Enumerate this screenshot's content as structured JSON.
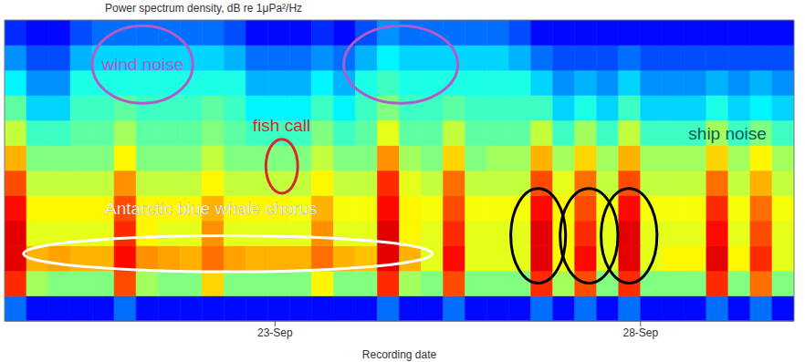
{
  "chart_data": {
    "type": "spectrogram",
    "title": "Power spectrum density, dB re 1μPa²/Hz",
    "x_label": "Recording date",
    "xlim": [
      19.3,
      30.1
    ],
    "xticks": [
      {
        "value": 23,
        "label": "23-Sep"
      },
      {
        "value": 28,
        "label": "28-Sep"
      }
    ],
    "ylim": [
      0,
      12
    ],
    "tick_labels": "x",
    "zlim": [
      50,
      110
    ],
    "x_edges": [
      19.3,
      19.6,
      19.9,
      20.2,
      20.5,
      20.8,
      21.1,
      21.4,
      21.7,
      22.0,
      22.3,
      22.6,
      22.9,
      23.2,
      23.5,
      23.8,
      24.1,
      24.4,
      24.7,
      25.0,
      25.3,
      25.6,
      25.9,
      26.2,
      26.5,
      26.8,
      27.1,
      27.4,
      27.7,
      28.0,
      28.3,
      28.6,
      28.9,
      29.2,
      29.5,
      29.8,
      30.1
    ],
    "y_edges": [
      0,
      1,
      2,
      3,
      4,
      5,
      6,
      7,
      8,
      9,
      10,
      11,
      12
    ],
    "cells": [
      [
        64,
        58,
        58,
        58,
        58,
        64,
        58,
        58,
        58,
        58,
        58,
        58,
        58,
        58,
        58,
        58,
        58,
        64,
        58,
        58,
        64,
        58,
        58,
        58,
        64,
        58,
        64,
        58,
        64,
        58,
        58,
        58,
        64,
        58,
        64,
        58
      ],
      [
        100,
        82,
        80,
        80,
        80,
        98,
        82,
        80,
        80,
        90,
        80,
        80,
        80,
        80,
        88,
        80,
        80,
        100,
        82,
        80,
        98,
        80,
        80,
        80,
        100,
        82,
        98,
        80,
        100,
        80,
        80,
        80,
        100,
        80,
        96,
        80
      ],
      [
        104,
        92,
        93,
        92,
        92,
        102,
        94,
        93,
        92,
        96,
        93,
        92,
        92,
        92,
        96,
        92,
        91,
        104,
        92,
        86,
        102,
        86,
        86,
        86,
        104,
        88,
        102,
        86,
        104,
        86,
        88,
        88,
        104,
        88,
        100,
        86
      ],
      [
        104,
        86,
        86,
        86,
        86,
        100,
        88,
        86,
        86,
        94,
        86,
        86,
        86,
        86,
        94,
        86,
        86,
        104,
        88,
        86,
        100,
        86,
        86,
        86,
        104,
        88,
        100,
        86,
        104,
        86,
        86,
        86,
        102,
        86,
        98,
        86
      ],
      [
        102,
        88,
        88,
        88,
        88,
        98,
        88,
        88,
        88,
        92,
        88,
        88,
        88,
        87,
        92,
        87,
        87,
        102,
        88,
        87,
        98,
        87,
        87,
        87,
        102,
        88,
        98,
        87,
        102,
        87,
        87,
        87,
        100,
        87,
        96,
        87
      ],
      [
        98,
        84,
        84,
        84,
        84,
        94,
        84,
        84,
        84,
        88,
        84,
        84,
        84,
        84,
        88,
        84,
        84,
        100,
        86,
        84,
        96,
        84,
        84,
        84,
        98,
        86,
        96,
        84,
        98,
        84,
        84,
        84,
        96,
        84,
        92,
        84
      ],
      [
        92,
        80,
        80,
        80,
        80,
        88,
        80,
        80,
        80,
        84,
        80,
        80,
        80,
        80,
        84,
        80,
        80,
        94,
        82,
        80,
        90,
        80,
        82,
        82,
        92,
        82,
        90,
        82,
        92,
        82,
        82,
        82,
        90,
        82,
        88,
        82
      ],
      [
        84,
        76,
        76,
        78,
        78,
        82,
        78,
        78,
        78,
        80,
        78,
        76,
        76,
        76,
        80,
        76,
        78,
        86,
        78,
        78,
        84,
        78,
        78,
        78,
        84,
        76,
        82,
        76,
        84,
        76,
        76,
        76,
        82,
        76,
        80,
        76
      ],
      [
        78,
        70,
        70,
        76,
        76,
        78,
        76,
        76,
        76,
        78,
        76,
        72,
        72,
        72,
        76,
        72,
        76,
        80,
        76,
        76,
        78,
        76,
        76,
        76,
        76,
        70,
        74,
        70,
        76,
        70,
        70,
        70,
        74,
        70,
        72,
        70
      ],
      [
        72,
        66,
        66,
        74,
        74,
        74,
        74,
        74,
        74,
        74,
        74,
        68,
        68,
        68,
        72,
        68,
        74,
        76,
        74,
        74,
        74,
        74,
        74,
        74,
        70,
        66,
        68,
        66,
        70,
        66,
        66,
        66,
        68,
        66,
        68,
        66
      ],
      [
        66,
        62,
        62,
        68,
        70,
        70,
        70,
        70,
        70,
        70,
        68,
        64,
        64,
        64,
        66,
        64,
        68,
        72,
        70,
        70,
        70,
        70,
        70,
        68,
        64,
        62,
        62,
        62,
        64,
        62,
        62,
        62,
        62,
        62,
        62,
        62
      ],
      [
        60,
        58,
        58,
        62,
        64,
        64,
        64,
        64,
        64,
        64,
        62,
        58,
        58,
        58,
        60,
        58,
        62,
        66,
        64,
        64,
        64,
        64,
        64,
        62,
        58,
        58,
        58,
        58,
        58,
        58,
        58,
        58,
        58,
        58,
        58,
        58
      ]
    ],
    "annotations": [
      {
        "text": "wind noise",
        "color": "#b05cc8",
        "text_at": [
          21.19,
          10.2
        ],
        "regions": [
          {
            "x": [
              20.5,
              21.875
            ],
            "y": [
              8.68,
              11.77
            ]
          },
          {
            "x": [
              23.94,
              25.5
            ],
            "y": [
              8.68,
              11.77
            ]
          }
        ]
      },
      {
        "text": "fish call",
        "color": "#d42a2a",
        "text_at": [
          23.09,
          7.74
        ],
        "regions": [
          {
            "x": [
              22.875,
              23.31
            ],
            "y": [
              5.09,
              7.25
            ]
          }
        ]
      },
      {
        "text": "Antarctic blue whale chorus",
        "color": "#ffffff",
        "text_at": [
          22.125,
          4.45
        ],
        "regions": [
          {
            "x": [
              19.56,
              25.15
            ],
            "y": [
              1.96,
              3.4
            ]
          }
        ]
      },
      {
        "text": "ship noise",
        "color": "#0b5a55",
        "text_at": [
          29.19,
          7.43
        ],
        "regions": [
          {
            "x": [
              26.225,
              26.975
            ],
            "y": [
              1.51,
              5.28
            ]
          },
          {
            "x": [
              26.9,
              27.69
            ],
            "y": [
              1.51,
              5.28
            ]
          },
          {
            "x": [
              27.46,
              28.225
            ],
            "y": [
              1.51,
              5.28
            ]
          }
        ]
      }
    ]
  }
}
